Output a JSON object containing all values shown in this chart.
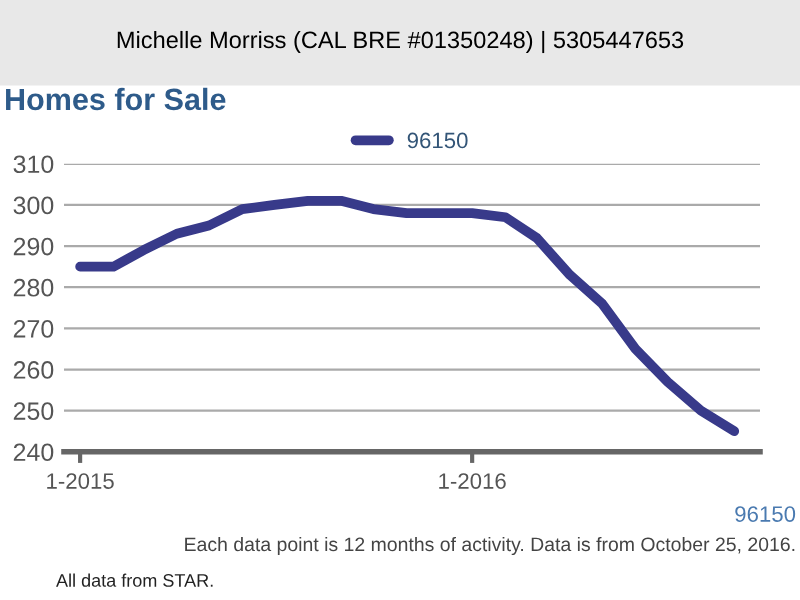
{
  "chart_data": {
    "type": "line",
    "title": "Homes for Sale",
    "x": [
      "2015-01",
      "2015-02",
      "2015-03",
      "2015-04",
      "2015-05",
      "2015-06",
      "2015-07",
      "2015-08",
      "2015-09",
      "2015-10",
      "2015-11",
      "2015-12",
      "2016-01",
      "2016-02",
      "2016-03",
      "2016-04",
      "2016-05",
      "2016-06",
      "2016-07",
      "2016-08",
      "2016-09"
    ],
    "series": [
      {
        "name": "96150",
        "color": "#383a8a",
        "values": [
          285,
          285,
          289,
          293,
          295,
          299,
          300,
          301,
          301,
          299,
          298,
          298,
          298,
          297,
          292,
          283,
          276,
          265,
          257,
          250,
          245
        ]
      }
    ],
    "xlim": [
      "2014-12-17",
      "2016-09-25"
    ],
    "xticks": [
      {
        "value": "2015-01",
        "label": "1-2015"
      },
      {
        "value": "2016-01",
        "label": "1-2016"
      }
    ],
    "ylim": [
      240,
      310
    ],
    "yticks": [
      240,
      250,
      260,
      270,
      280,
      290,
      300,
      310
    ],
    "grid": "y",
    "legend": "top",
    "marker": "none",
    "line_style": "solid",
    "annotations": [
      "Michelle Morriss (CAL BRE #01350248) | 5305447653",
      "96150",
      "Each data point is 12 months of activity. Data is from October 25, 2016.",
      "All data from STAR."
    ]
  }
}
